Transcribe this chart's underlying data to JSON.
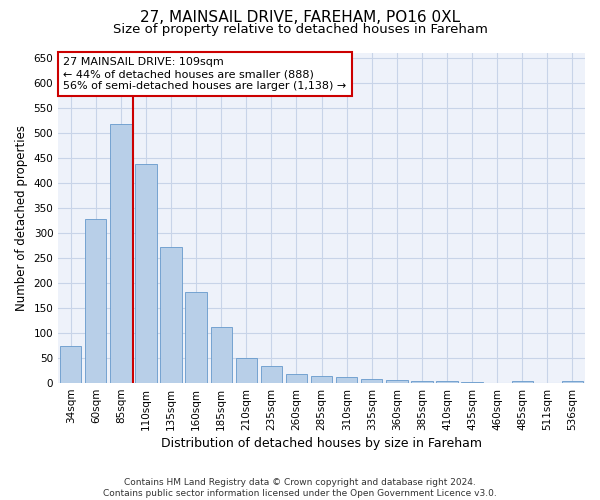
{
  "title_line1": "27, MAINSAIL DRIVE, FAREHAM, PO16 0XL",
  "title_line2": "Size of property relative to detached houses in Fareham",
  "xlabel": "Distribution of detached houses by size in Fareham",
  "ylabel": "Number of detached properties",
  "categories": [
    "34sqm",
    "60sqm",
    "85sqm",
    "110sqm",
    "135sqm",
    "160sqm",
    "185sqm",
    "210sqm",
    "235sqm",
    "260sqm",
    "285sqm",
    "310sqm",
    "335sqm",
    "360sqm",
    "385sqm",
    "410sqm",
    "435sqm",
    "460sqm",
    "485sqm",
    "511sqm",
    "536sqm"
  ],
  "bar_values": [
    75,
    327,
    517,
    437,
    272,
    181,
    112,
    50,
    35,
    18,
    15,
    12,
    8,
    6,
    5,
    5,
    2,
    0,
    5,
    0,
    5
  ],
  "bar_color": "#b8cfe8",
  "bar_edge_color": "#6699cc",
  "grid_color": "#c8d4e8",
  "background_color": "#eef2fa",
  "vline_x": 2.5,
  "vline_color": "#cc0000",
  "annotation_text": "27 MAINSAIL DRIVE: 109sqm\n← 44% of detached houses are smaller (888)\n56% of semi-detached houses are larger (1,138) →",
  "annotation_box_color": "#cc0000",
  "ylim": [
    0,
    660
  ],
  "yticks": [
    0,
    50,
    100,
    150,
    200,
    250,
    300,
    350,
    400,
    450,
    500,
    550,
    600,
    650
  ],
  "footnote": "Contains HM Land Registry data © Crown copyright and database right 2024.\nContains public sector information licensed under the Open Government Licence v3.0.",
  "title_fontsize": 11,
  "subtitle_fontsize": 9.5,
  "tick_fontsize": 7.5,
  "ylabel_fontsize": 8.5,
  "xlabel_fontsize": 9
}
